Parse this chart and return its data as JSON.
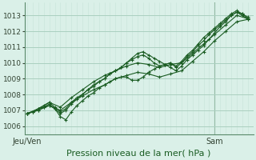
{
  "title": "Pression niveau de la mer( hPa )",
  "ylim": [
    1005.5,
    1013.8
  ],
  "yticks": [
    1006,
    1007,
    1008,
    1009,
    1010,
    1011,
    1012,
    1013
  ],
  "bg_color": "#daf0e8",
  "grid_major_color": "#aacfbf",
  "grid_minor_color": "#c8e5d8",
  "line_color": "#1a5c22",
  "marker_color": "#1a5c22",
  "spine_color": "#5a8a6a",
  "tick_color": "#334433",
  "lines": [
    {
      "x": [
        0,
        1,
        2,
        3,
        4,
        5,
        6,
        7,
        8,
        9,
        10,
        11,
        12,
        13,
        14,
        15,
        16,
        17,
        18,
        19,
        20,
        21,
        22,
        23,
        24,
        25,
        26,
        27,
        28,
        29,
        30,
        31,
        32,
        33,
        34,
        35,
        36,
        37,
        38,
        39,
        40
      ],
      "y": [
        1006.8,
        1006.9,
        1007.1,
        1007.2,
        1007.3,
        1007.1,
        1006.6,
        1006.4,
        1006.9,
        1007.3,
        1007.6,
        1007.9,
        1008.1,
        1008.4,
        1008.6,
        1008.8,
        1009.0,
        1009.1,
        1009.1,
        1008.9,
        1008.9,
        1009.1,
        1009.4,
        1009.6,
        1009.8,
        1009.9,
        1009.7,
        1009.5,
        1009.8,
        1010.2,
        1010.5,
        1010.8,
        1011.1,
        1011.5,
        1011.9,
        1012.3,
        1012.6,
        1013.0,
        1013.2,
        1013.0,
        1012.75
      ]
    },
    {
      "x": [
        0,
        1,
        2,
        3,
        4,
        5,
        6,
        7,
        8,
        9,
        10,
        11,
        12,
        13,
        14,
        15,
        16,
        17,
        18,
        19,
        20,
        21,
        22,
        23,
        24,
        25,
        26,
        27,
        28,
        29,
        30,
        31,
        32,
        33,
        34,
        35,
        36,
        37,
        38,
        39,
        40
      ],
      "y": [
        1006.8,
        1006.9,
        1007.1,
        1007.3,
        1007.5,
        1007.2,
        1006.9,
        1007.1,
        1007.5,
        1007.8,
        1008.0,
        1008.3,
        1008.6,
        1008.8,
        1009.0,
        1009.3,
        1009.5,
        1009.7,
        1010.0,
        1010.3,
        1010.6,
        1010.7,
        1010.5,
        1010.3,
        1010.1,
        1009.9,
        1010.0,
        1009.8,
        1010.1,
        1010.5,
        1010.8,
        1011.2,
        1011.6,
        1011.9,
        1012.2,
        1012.5,
        1012.8,
        1013.1,
        1013.3,
        1013.1,
        1012.9
      ]
    },
    {
      "x": [
        0,
        1,
        2,
        3,
        4,
        5,
        6,
        7,
        8,
        9,
        10,
        11,
        12,
        13,
        14,
        15,
        16,
        17,
        18,
        19,
        20,
        21,
        22,
        23,
        24,
        25,
        26,
        27,
        28,
        29,
        30,
        31,
        32,
        33,
        34,
        35,
        36,
        37,
        38,
        39,
        40
      ],
      "y": [
        1006.8,
        1006.9,
        1007.0,
        1007.2,
        1007.4,
        1007.1,
        1006.8,
        1007.0,
        1007.4,
        1007.7,
        1008.0,
        1008.3,
        1008.5,
        1008.8,
        1009.0,
        1009.3,
        1009.5,
        1009.7,
        1010.0,
        1010.2,
        1010.4,
        1010.5,
        1010.3,
        1010.0,
        1009.8,
        1009.9,
        1010.0,
        1009.7,
        1010.0,
        1010.4,
        1010.7,
        1011.1,
        1011.4,
        1011.8,
        1012.1,
        1012.4,
        1012.7,
        1013.0,
        1013.2,
        1013.1,
        1012.8
      ]
    },
    {
      "x": [
        0,
        2,
        4,
        6,
        8,
        10,
        12,
        14,
        16,
        18,
        20,
        22,
        24,
        26,
        28,
        30,
        32,
        34,
        36,
        38,
        40
      ],
      "y": [
        1006.8,
        1007.1,
        1007.5,
        1007.2,
        1007.8,
        1008.3,
        1008.8,
        1009.2,
        1009.5,
        1009.8,
        1010.0,
        1009.9,
        1009.7,
        1009.9,
        1010.0,
        1010.6,
        1011.2,
        1011.8,
        1012.4,
        1013.0,
        1012.8
      ]
    },
    {
      "x": [
        0,
        2,
        4,
        6,
        8,
        10,
        12,
        14,
        16,
        18,
        20,
        22,
        24,
        26,
        28,
        30,
        32,
        34,
        36,
        38,
        40
      ],
      "y": [
        1006.8,
        1007.0,
        1007.3,
        1007.0,
        1007.5,
        1007.9,
        1008.3,
        1008.6,
        1009.0,
        1009.2,
        1009.4,
        1009.3,
        1009.1,
        1009.3,
        1009.5,
        1010.1,
        1010.7,
        1011.4,
        1012.0,
        1012.6,
        1012.75
      ]
    }
  ],
  "sam_x": 34,
  "xlim": [
    -0.5,
    41
  ],
  "xtick_left_x": 0,
  "xtick_left_label": "Jeu/Ven",
  "xtick_right_x": 34,
  "xtick_right_label": "Sam"
}
